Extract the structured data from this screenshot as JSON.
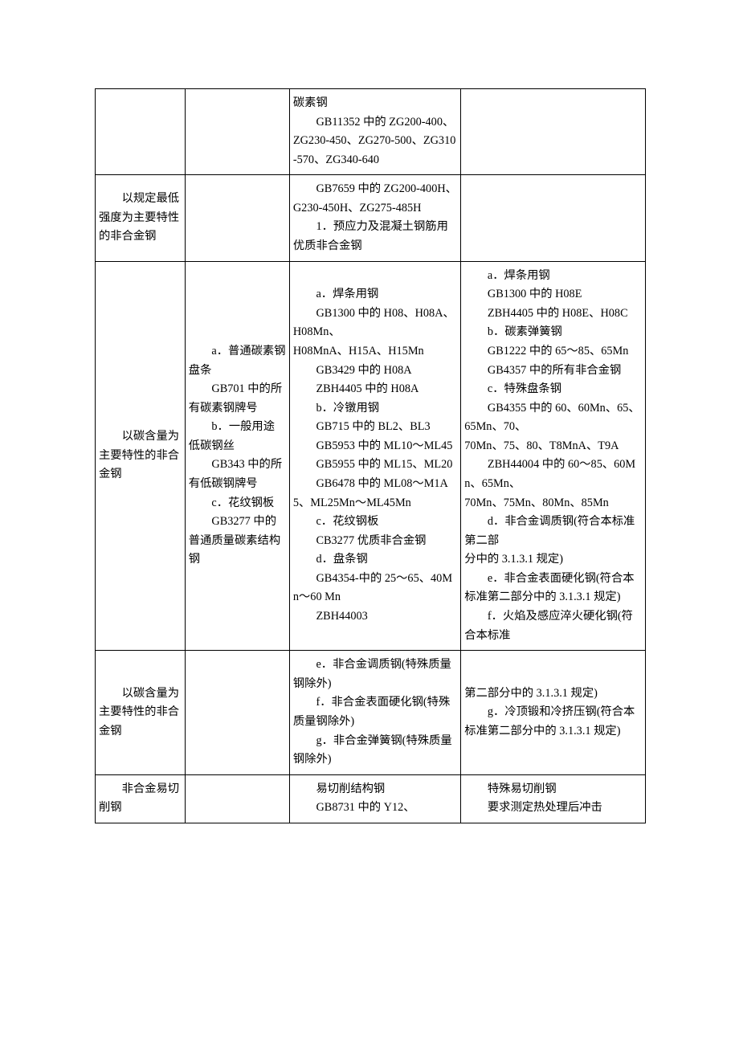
{
  "rows": [
    {
      "col1": [],
      "col2": [],
      "col3": [
        {
          "t": "碳素钢",
          "cls": "blk"
        },
        {
          "t": "GB11352 中的 ZG200-400、ZG230-450、ZG270-500、ZG310-570、ZG340-640",
          "cls": "blk ind"
        }
      ],
      "col4": []
    },
    {
      "col1": [
        {
          "t": "以规定最低强度为主要特性的非合金钢",
          "cls": "blk ind"
        }
      ],
      "col2": [],
      "col3": [
        {
          "t": "GB7659 中的 ZG200-400H、G230-450H、ZG275-485H",
          "cls": "blk ind"
        },
        {
          "t": "1．预应力及混凝土钢筋用优质非合金钢",
          "cls": "blk ind"
        }
      ],
      "col4": []
    },
    {
      "col1": [
        {
          "t": "以碳含量为主要特性的非合金钢",
          "cls": "blk ind"
        }
      ],
      "col2": [
        {
          "t": "a．普通碳素钢盘条",
          "cls": "blk ind"
        },
        {
          "t": "GB701 中的所有碳素钢牌号",
          "cls": "blk ind"
        },
        {
          "t": "b．一般用途低碳钢丝",
          "cls": "blk ind"
        },
        {
          "t": "GB343 中的所有低碳钢牌号",
          "cls": "blk ind"
        },
        {
          "t": "c．花纹钢板",
          "cls": "blk ind"
        },
        {
          "t": "GB3277 中的普通质量碳素结构钢",
          "cls": "blk ind"
        }
      ],
      "col3": [
        {
          "t": "a．焊条用钢",
          "cls": "blk ind"
        },
        {
          "t": "GB1300 中的 H08、H08A、H08Mn、",
          "cls": "blk ind"
        },
        {
          "t": "H08MnA、H15A、H15Mn",
          "cls": "blk"
        },
        {
          "t": "GB3429 中的 H08A",
          "cls": "blk ind"
        },
        {
          "t": "ZBH4405 中的 H08A",
          "cls": "blk ind"
        },
        {
          "t": "b．冷镦用钢",
          "cls": "blk ind"
        },
        {
          "t": "GB715 中的 BL2、BL3",
          "cls": "blk ind"
        },
        {
          "t": "GB5953 中的 ML10～ML45",
          "cls": "blk ind"
        },
        {
          "t": "GB5955 中的 ML15、ML20",
          "cls": "blk ind"
        },
        {
          "t": "GB6478 中的 ML08～M1A5、ML25Mn～ML45Mn",
          "cls": "blk ind"
        },
        {
          "t": "c．花纹钢板",
          "cls": "blk ind"
        },
        {
          "t": "CB3277 优质非合金钢",
          "cls": "blk ind"
        },
        {
          "t": "d．盘条钢",
          "cls": "blk ind"
        },
        {
          "t": "GB4354-中的 25～65、40Mn～60 Mn",
          "cls": "blk ind"
        },
        {
          "t": "ZBH44003",
          "cls": "blk ind"
        }
      ],
      "col4": [
        {
          "t": "a．焊条用钢",
          "cls": "blk ind"
        },
        {
          "t": "GB1300 中的 H08E",
          "cls": "blk ind"
        },
        {
          "t": "ZBH4405 中的 H08E、H08C",
          "cls": "blk ind"
        },
        {
          "t": "b．碳素弹簧钢",
          "cls": "blk ind"
        },
        {
          "t": "GB1222 中的 65～85、65Mn",
          "cls": "blk ind"
        },
        {
          "t": "GB4357 中的所有非合金钢",
          "cls": "blk ind"
        },
        {
          "t": "c．特殊盘条钢",
          "cls": "blk ind"
        },
        {
          "t": "GB4355 中的 60、60Mn、65、65Mn、70、",
          "cls": "blk ind"
        },
        {
          "t": "70Mn、75、80、T8MnA、T9A",
          "cls": "blk"
        },
        {
          "t": "ZBH44004 中的 60～85、60Mn、65Mn、",
          "cls": "blk ind"
        },
        {
          "t": "70Mn、75Mn、80Mn、85Mn",
          "cls": "blk"
        },
        {
          "t": "d．非合金调质钢(符合本标准第二部",
          "cls": "blk ind"
        },
        {
          "t": "分中的 3.1.3.1 规定)",
          "cls": "blk"
        },
        {
          "t": "e．非合金表面硬化钢(符合本标准第二部分中的 3.1.3.1 规定)",
          "cls": "blk ind"
        },
        {
          "t": "f．火焰及感应淬火硬化钢(符合本标准",
          "cls": "blk ind"
        }
      ]
    },
    {
      "col1": [
        {
          "t": "以碳含量为主要特性的非合金钢",
          "cls": "blk ind"
        }
      ],
      "col2": [],
      "col3": [
        {
          "t": "e．非合金调质钢(特殊质量钢除外)",
          "cls": "blk ind"
        },
        {
          "t": "f．非合金表面硬化钢(特殊质量钢除外)",
          "cls": "blk ind"
        },
        {
          "t": "g．非合金弹簧钢(特殊质量钢除外)",
          "cls": "blk ind"
        }
      ],
      "col4": [
        {
          "t": "第二部分中的 3.1.3.1 规定)",
          "cls": "blk"
        },
        {
          "t": "g．冷顶锻和冷挤压钢(符合本标准第二部分中的 3.1.3.1 规定)",
          "cls": "blk ind"
        }
      ]
    },
    {
      "col1": [
        {
          "t": "非合金易切削钢",
          "cls": "blk ind"
        }
      ],
      "col2": [],
      "col3": [
        {
          "t": "易切削结构钢",
          "cls": "blk ind"
        },
        {
          "t": "GB8731 中的 Y12、",
          "cls": "blk ind"
        }
      ],
      "col4": [
        {
          "t": "特殊易切削钢",
          "cls": "blk ind"
        },
        {
          "t": "要求测定热处理后冲击",
          "cls": "blk ind"
        }
      ]
    }
  ]
}
